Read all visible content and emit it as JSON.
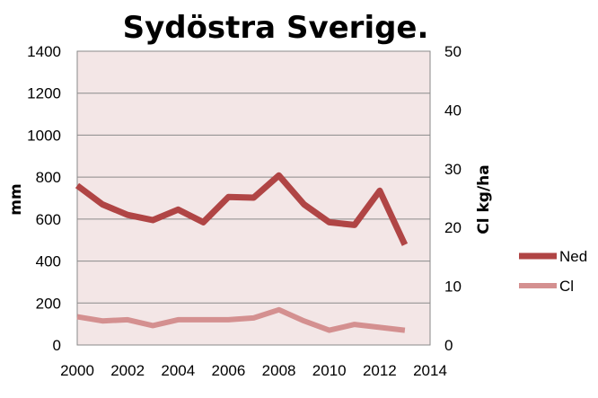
{
  "chart_data": {
    "type": "line",
    "title": "Sydöstra Sverige.",
    "ylabel_left": "mm",
    "ylabel_right": "Cl kg/ha",
    "xlim": [
      2000,
      2014
    ],
    "ylim_left": [
      0,
      1400
    ],
    "ylim_right": [
      0,
      50
    ],
    "x_ticks": [
      "2000",
      "2002",
      "2004",
      "2006",
      "2008",
      "2010",
      "2012",
      "2014"
    ],
    "y_ticks_left": [
      "0",
      "200",
      "400",
      "600",
      "800",
      "1000",
      "1200",
      "1400"
    ],
    "y_ticks_right": [
      "0",
      "10",
      "20",
      "30",
      "40",
      "50"
    ],
    "grid": true,
    "legend_position": "right",
    "plot_background": "#f3e6e6",
    "x": [
      2000,
      2001,
      2002,
      2003,
      2004,
      2005,
      2006,
      2007,
      2008,
      2009,
      2010,
      2011,
      2012,
      2013
    ],
    "series": [
      {
        "name": "Ned",
        "axis": "left",
        "color": "#b04545",
        "values": [
          760,
          670,
          620,
          595,
          645,
          585,
          705,
          702,
          808,
          670,
          585,
          572,
          735,
          478
        ]
      },
      {
        "name": "Cl",
        "axis": "right",
        "color": "#d49090",
        "values": [
          4.8,
          4.1,
          4.3,
          3.3,
          4.3,
          4.3,
          4.3,
          4.6,
          6.0,
          4.1,
          2.5,
          3.5,
          3.0,
          2.5
        ]
      }
    ]
  }
}
